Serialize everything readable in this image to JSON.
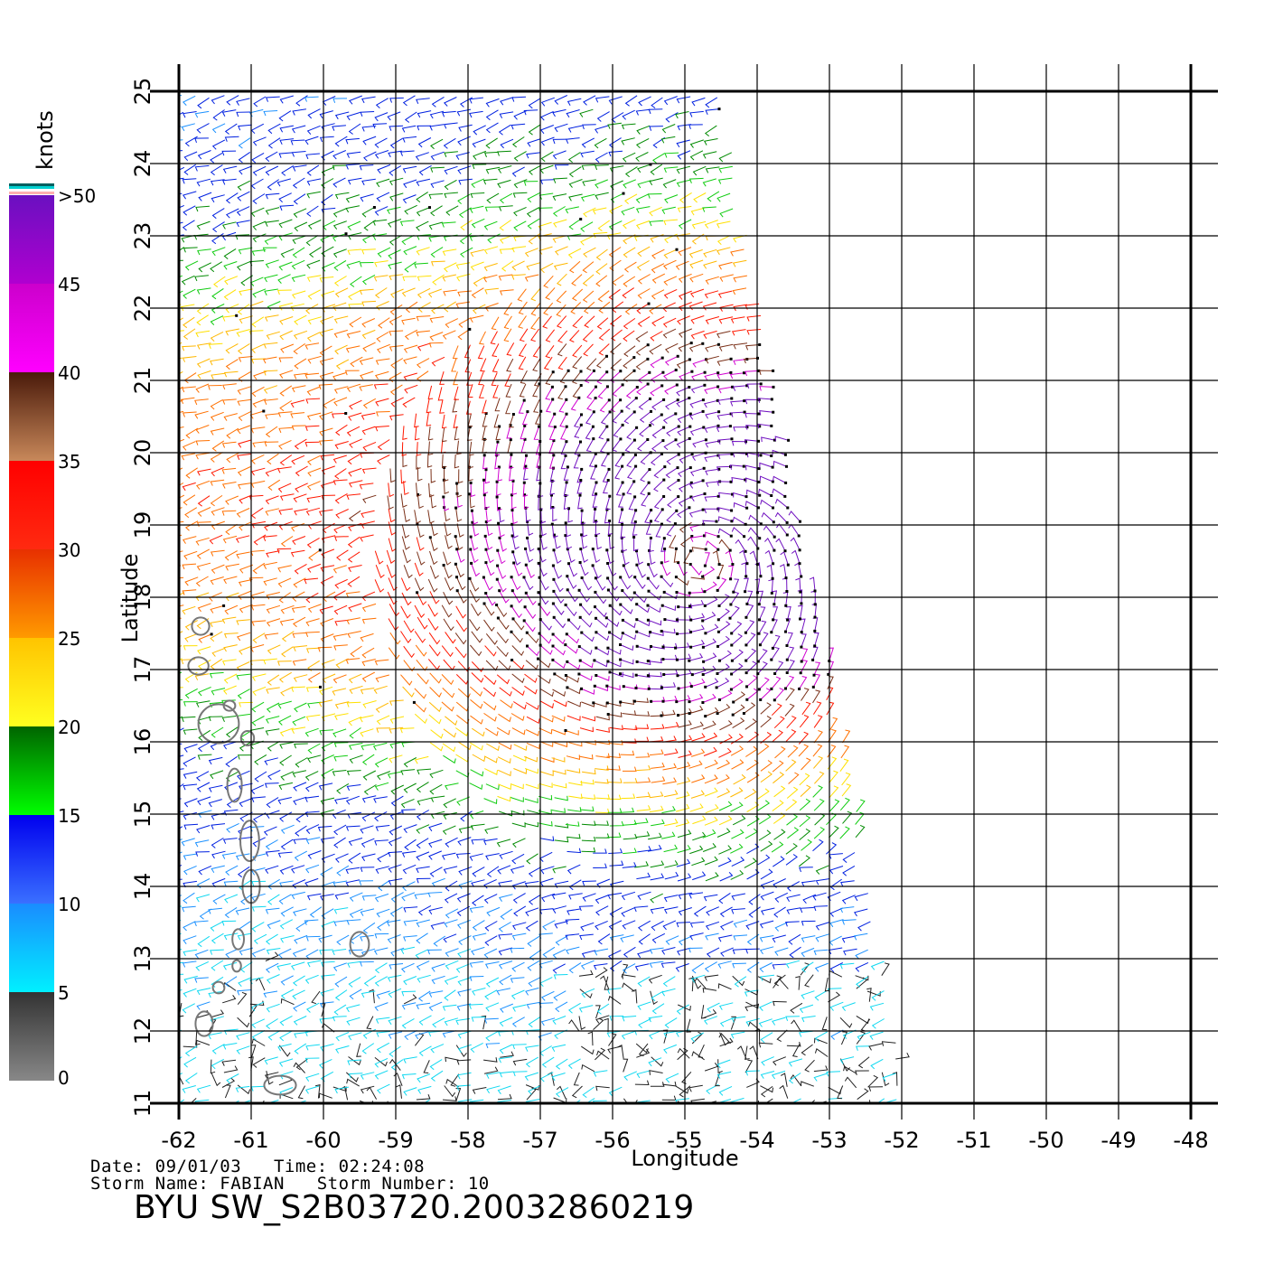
{
  "legend": {
    "unit": "knots",
    "bands": [
      {
        "from": 0,
        "to": 5,
        "top": "#333333",
        "bottom": "#888888"
      },
      {
        "from": 5,
        "to": 10,
        "top": "#1a8cff",
        "bottom": "#00f0ff"
      },
      {
        "from": 10,
        "to": 15,
        "top": "#0000ee",
        "bottom": "#3a70ff"
      },
      {
        "from": 15,
        "to": 20,
        "top": "#006400",
        "bottom": "#00ff00"
      },
      {
        "from": 20,
        "to": 25,
        "top": "#ffc400",
        "bottom": "#ffff20"
      },
      {
        "from": 25,
        "to": 30,
        "top": "#e83000",
        "bottom": "#ff9a00"
      },
      {
        "from": 30,
        "to": 35,
        "top": "#ff0000",
        "bottom": "#ff2a10"
      },
      {
        "from": 35,
        "to": 40,
        "top": "#4a1a0a",
        "bottom": "#c8885a"
      },
      {
        "from": 40,
        "to": 45,
        "top": "#cc00cc",
        "bottom": "#ff00ff"
      },
      {
        "from": 45,
        "to": 50,
        "top": "#6a10c0",
        "bottom": "#b000d0"
      }
    ],
    "labels": [
      "0",
      "5",
      "10",
      "15",
      "20",
      "25",
      "30",
      "35",
      "40",
      "45",
      ">50"
    ]
  },
  "map": {
    "xlabel": "Longitude",
    "ylabel": "Latitude",
    "lon_range": [
      -62,
      -48
    ],
    "lat_range": [
      11,
      25
    ],
    "lon_ticks": [
      "-62",
      "-61",
      "-60",
      "-59",
      "-58",
      "-57",
      "-56",
      "-55",
      "-54",
      "-53",
      "-52",
      "-51",
      "-50",
      "-49",
      "-48"
    ],
    "lat_ticks": [
      "11",
      "12",
      "13",
      "14",
      "15",
      "16",
      "17",
      "18",
      "19",
      "20",
      "21",
      "22",
      "23",
      "24",
      "25"
    ],
    "swath_corners": [
      [
        -62,
        25
      ],
      [
        -54.5,
        25
      ],
      [
        -52.8,
        16
      ],
      [
        -51.9,
        11
      ],
      [
        -62,
        11
      ]
    ],
    "storm_center": [
      -54.8,
      18.5
    ]
  },
  "footer": {
    "line1": "Date: 09/01/03   Time: 02:24:08",
    "line2": "Storm Name: FABIAN   Storm Number: 10",
    "title": "BYU SW_S2B03720.20032860219"
  }
}
